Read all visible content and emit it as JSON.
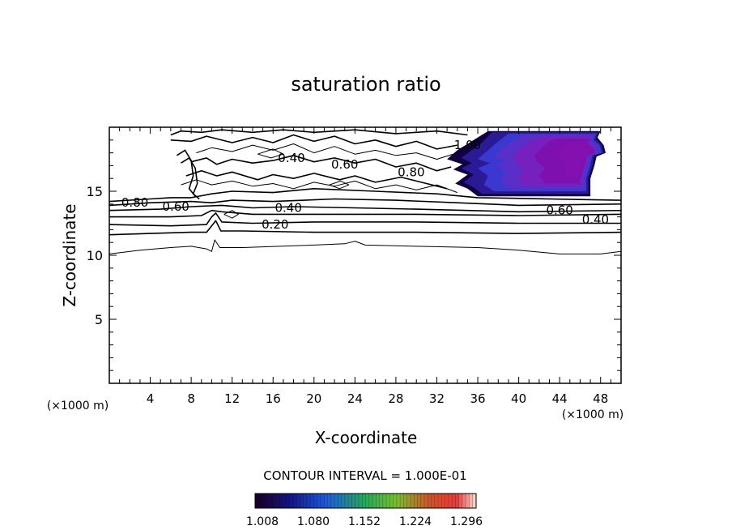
{
  "chart_data": {
    "type": "contour",
    "title": "saturation ratio",
    "xlabel": "X-coordinate",
    "ylabel": "Z-coordinate",
    "x_unit": "(×1000 m)",
    "z_unit": "(×1000 m)",
    "xlim": [
      0,
      50
    ],
    "ylim": [
      0,
      20
    ],
    "x_ticks": [
      "4",
      "8",
      "12",
      "16",
      "20",
      "24",
      "28",
      "32",
      "36",
      "40",
      "44",
      "48"
    ],
    "y_ticks": [
      "5",
      "10",
      "15"
    ],
    "contour_interval_text": "CONTOUR INTERVAL = 1.000E-01",
    "colorbar_labels": [
      "1.008",
      "1.080",
      "1.152",
      "1.224",
      "1.296"
    ],
    "colorbar_range": [
      1.008,
      1.32
    ],
    "colors": [
      "#120042",
      "#2a1a96",
      "#3a38d0",
      "#5a2ec8",
      "#7620c0",
      "#7e10b0",
      "#8410b0"
    ],
    "contour_labels": [
      {
        "text": "0.80",
        "x": 2.5,
        "z": 14.1
      },
      {
        "text": "0.60",
        "x": 6.5,
        "z": 13.8
      },
      {
        "text": "0.20",
        "x": 16.2,
        "z": 12.4
      },
      {
        "text": "0.40",
        "x": 17.8,
        "z": 17.6
      },
      {
        "text": "0.40",
        "x": 17.5,
        "z": 13.7
      },
      {
        "text": "0.60",
        "x": 23.0,
        "z": 17.1
      },
      {
        "text": "0.80",
        "x": 29.5,
        "z": 16.5
      },
      {
        "text": "1.00",
        "x": 35.0,
        "z": 18.6
      },
      {
        "text": "0.60",
        "x": 44.0,
        "z": 13.5
      },
      {
        "text": "0.40",
        "x": 47.5,
        "z": 12.8
      }
    ]
  }
}
